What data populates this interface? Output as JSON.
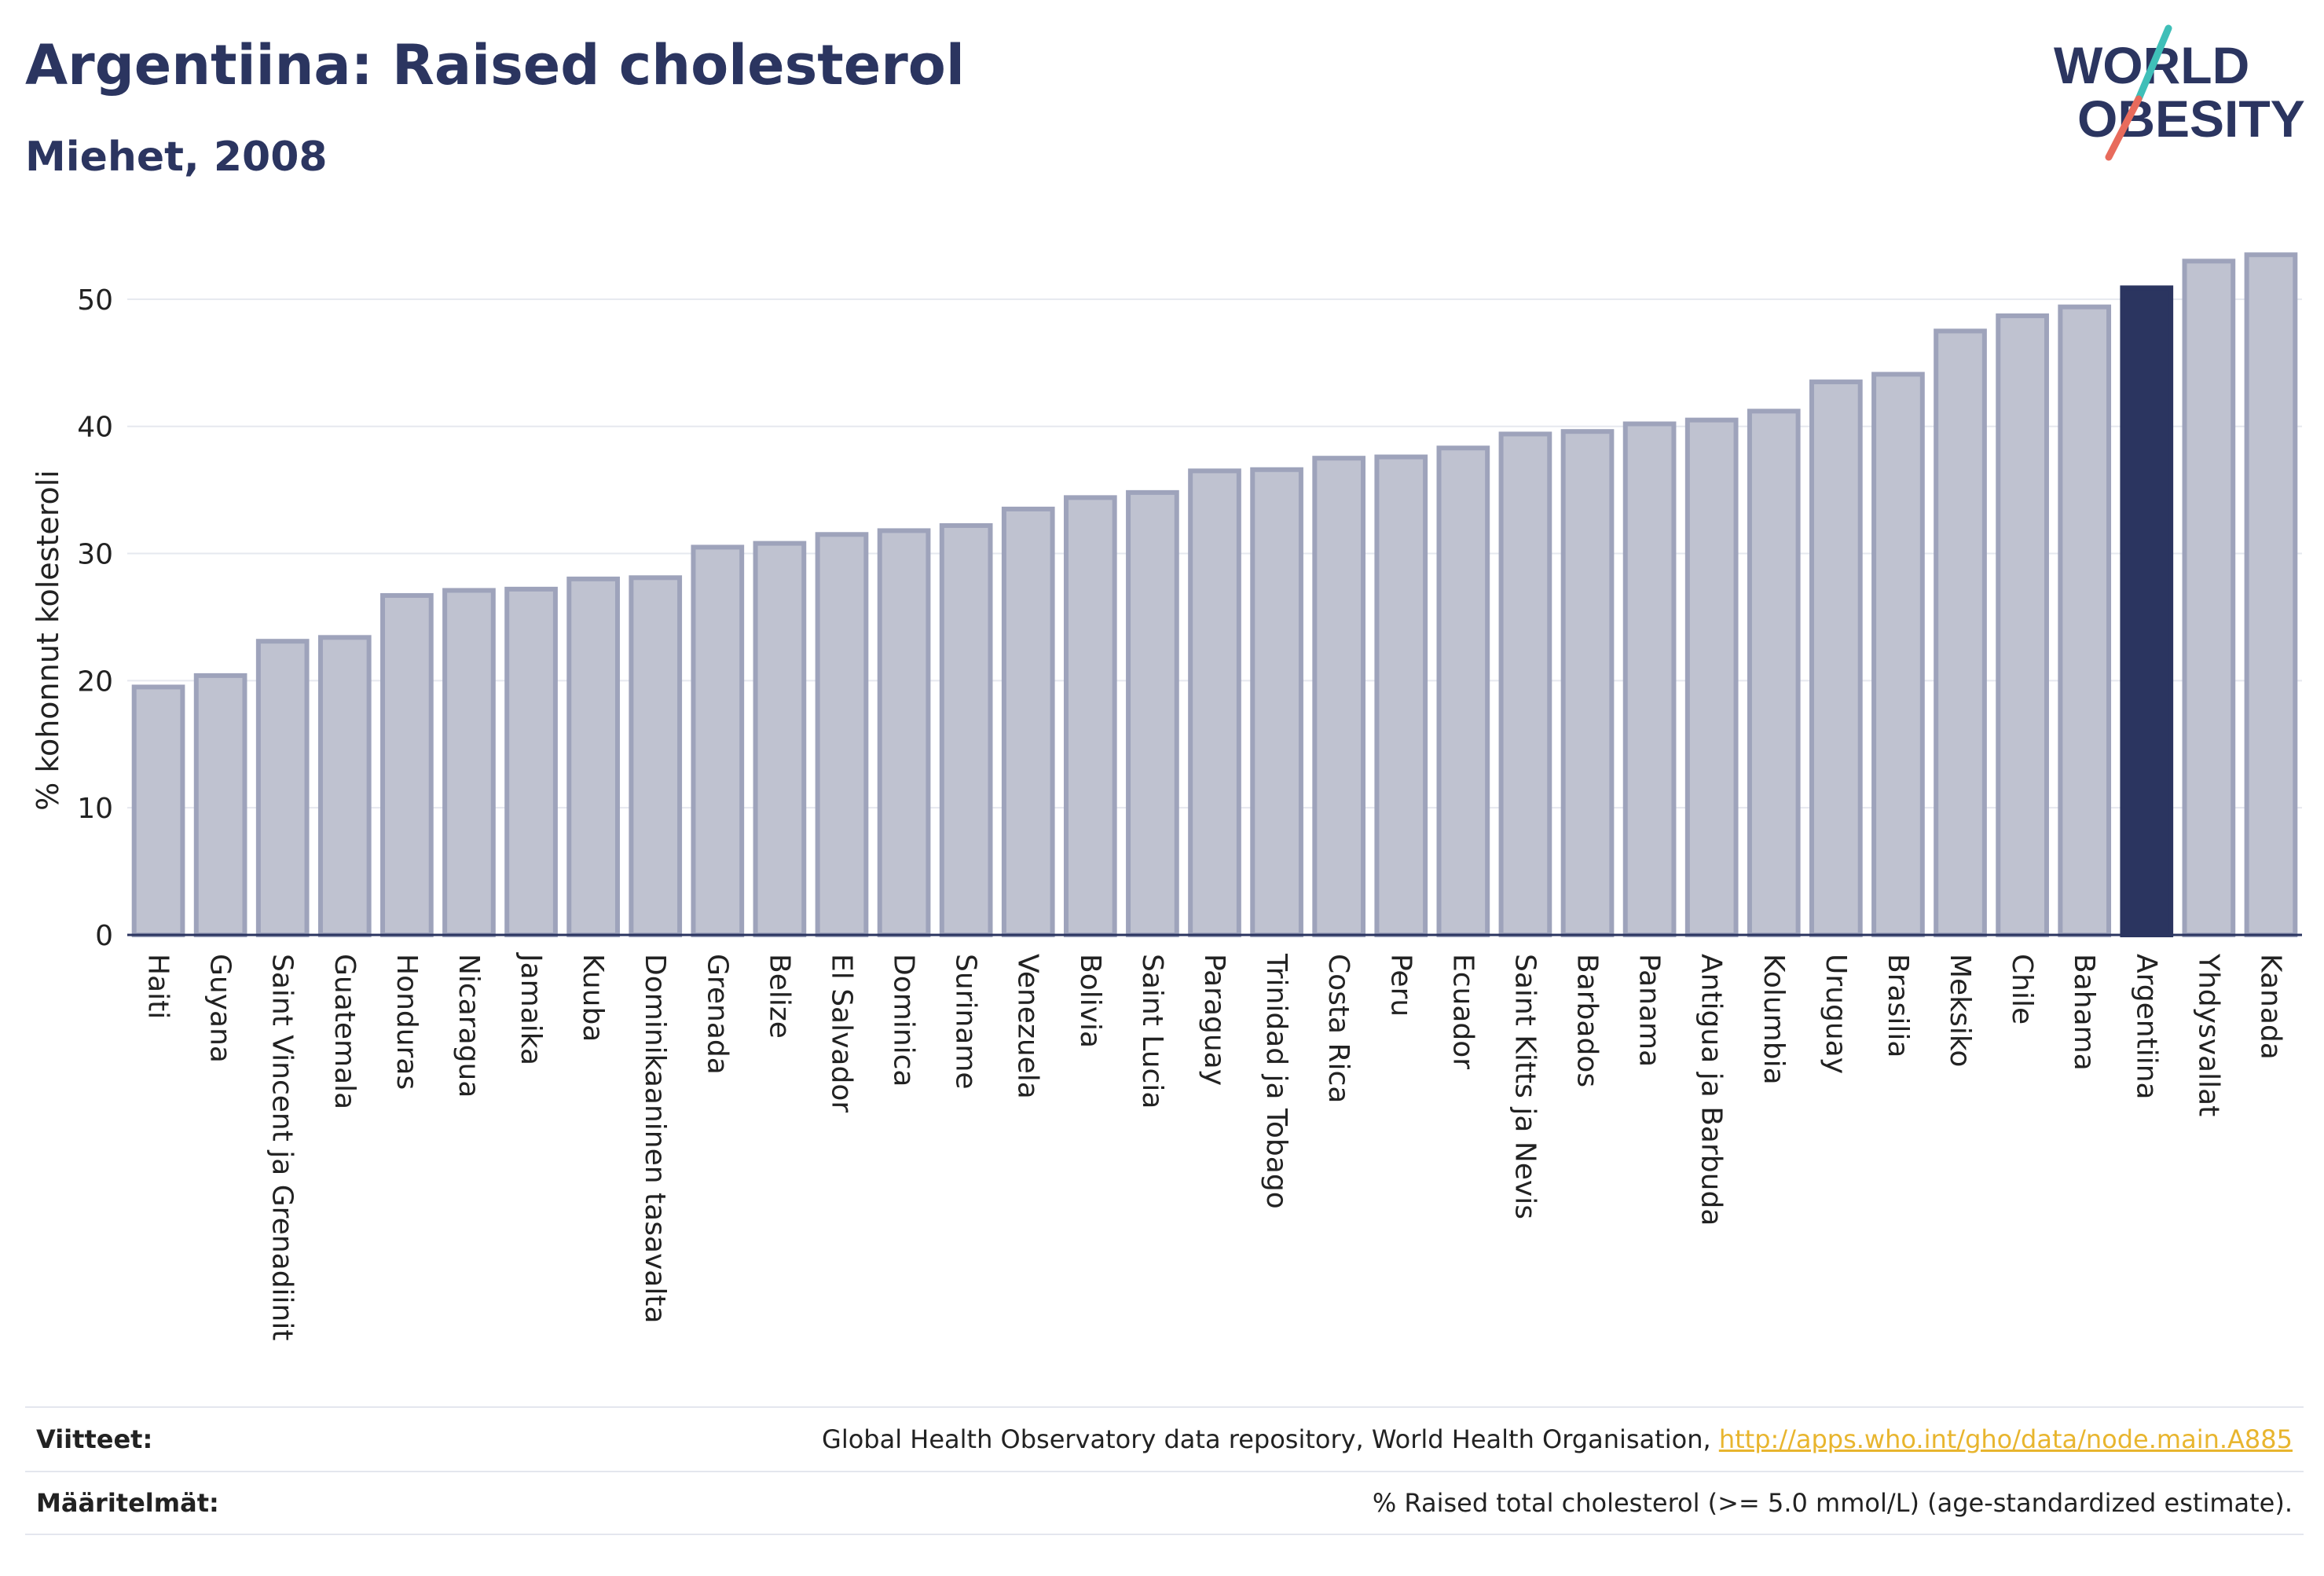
{
  "header": {
    "title": "Argentiina: Raised cholesterol",
    "subtitle": "Miehet, 2008"
  },
  "logo": {
    "line1": "WORLD",
    "line2": "OBESITY",
    "icon": "world-obesity-logo"
  },
  "colors": {
    "bar": "#bfc2d0",
    "bar_stroke": "#9ea3bb",
    "highlight": "#2b3560",
    "accent_teal": "#3fbfb8",
    "accent_coral": "#e86b5c",
    "link": "#e8b52e"
  },
  "chart_data": {
    "type": "bar",
    "ylabel": "% kohonnut kolesteroli",
    "xlabel": "",
    "ylim": [
      0,
      55
    ],
    "yticks": [
      0,
      10,
      20,
      30,
      40,
      50
    ],
    "grid": true,
    "highlight_category": "Argentiina",
    "categories": [
      "Haiti",
      "Guyana",
      "Saint Vincent ja Grenadiinit",
      "Guatemala",
      "Honduras",
      "Nicaragua",
      "Jamaika",
      "Kuuba",
      "Dominikaaninen tasavalta",
      "Grenada",
      "Belize",
      "El Salvador",
      "Dominica",
      "Suriname",
      "Venezuela",
      "Bolivia",
      "Saint Lucia",
      "Paraguay",
      "Trinidad ja Tobago",
      "Costa Rica",
      "Peru",
      "Ecuador",
      "Saint Kitts ja Nevis",
      "Barbados",
      "Panama",
      "Antigua ja Barbuda",
      "Kolumbia",
      "Uruguay",
      "Brasilia",
      "Meksiko",
      "Chile",
      "Bahama",
      "Argentiina",
      "Yhdysvallat",
      "Kanada"
    ],
    "values": [
      19.5,
      20.4,
      23.1,
      23.4,
      26.7,
      27.1,
      27.2,
      28.0,
      28.1,
      30.5,
      30.8,
      31.5,
      31.8,
      32.2,
      33.5,
      34.4,
      34.8,
      36.5,
      36.6,
      37.5,
      37.6,
      38.3,
      39.4,
      39.6,
      40.2,
      40.5,
      41.2,
      43.5,
      44.1,
      47.5,
      48.7,
      49.4,
      50.9,
      53.0,
      53.5
    ]
  },
  "footer": {
    "references_label": "Viitteet:",
    "references_text": "Global Health Observatory data repository, World Health Organisation, ",
    "references_link": "http://apps.who.int/gho/data/node.main.A885",
    "definitions_label": "Määritelmät:",
    "definitions_text": "% Raised total cholesterol (>= 5.0 mmol/L) (age-standardized estimate)."
  }
}
